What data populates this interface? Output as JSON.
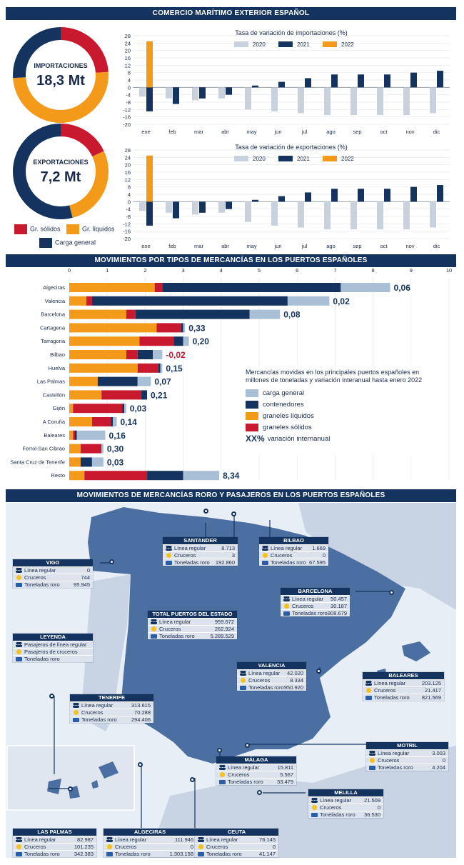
{
  "headers": {
    "top": "COMERCIO MARÍTIMO EXTERIOR ESPAÑOL",
    "middle": "MOVIMIENTOS POR TIPOS DE MERCANCÍAS EN LOS PUERTOS ESPAÑOLES",
    "bottom": "MOVIMIENTOS DE MERCANCÍAS RORO Y PASAJEROS EN LOS PUERTOS ESPAÑOLES"
  },
  "colors": {
    "navy": "#14345f",
    "orange": "#f39a1a",
    "red": "#c8192f",
    "light": "#a9bfd6",
    "grey": "#c9d2dc",
    "map_land": "#4a6fa0",
    "map_other": "#c8d4e4",
    "sea": "#ffffff"
  },
  "donuts": [
    {
      "label": "IMPORTACIONES",
      "value": "18,3 Mt",
      "segments": [
        {
          "name": "Gr. sólidos",
          "share": 0.24,
          "color": "#c8192f"
        },
        {
          "name": "Gr. líquidos",
          "share": 0.5,
          "color": "#f39a1a"
        },
        {
          "name": "Carga general",
          "share": 0.26,
          "color": "#14345f"
        }
      ]
    },
    {
      "label": "EXPORTACIONES",
      "value": "7,2 Mt",
      "segments": [
        {
          "name": "Gr. sólidos",
          "share": 0.18,
          "color": "#c8192f"
        },
        {
          "name": "Gr. líquidos",
          "share": 0.28,
          "color": "#f39a1a"
        },
        {
          "name": "Carga general",
          "share": 0.54,
          "color": "#14345f"
        }
      ]
    }
  ],
  "donut_legend": [
    "Gr. sólidos",
    "Gr. líquidos",
    "Carga general"
  ],
  "chart_data": [
    {
      "type": "bar",
      "title": "Tasa de variación de importaciones (%)",
      "categories": [
        "ene",
        "feb",
        "mar",
        "abr",
        "may",
        "jun",
        "jul",
        "ago",
        "sep",
        "oct",
        "nov",
        "dic"
      ],
      "ylim": [
        -20,
        28
      ],
      "yticks": [
        28,
        24,
        20,
        16,
        12,
        8,
        4,
        0,
        -4,
        -8,
        -12,
        -16,
        -20
      ],
      "series": [
        {
          "name": "2020",
          "color": "#c9d2dc",
          "values": [
            -5,
            -6,
            -7,
            -6,
            -12,
            -13,
            -14,
            -15,
            -15,
            -15,
            -15,
            -14
          ]
        },
        {
          "name": "2021",
          "color": "#14345f",
          "values": [
            -13,
            -9,
            -6,
            -4,
            1,
            3,
            5,
            7,
            7,
            7,
            8,
            9
          ]
        },
        {
          "name": "2022",
          "color": "#f39a1a",
          "values": [
            25,
            null,
            null,
            null,
            null,
            null,
            null,
            null,
            null,
            null,
            null,
            null
          ]
        }
      ]
    },
    {
      "type": "bar",
      "title": "Tasa de variación de exportaciones (%)",
      "categories": [
        "ene",
        "feb",
        "mar",
        "abr",
        "may",
        "jun",
        "jul",
        "ago",
        "sep",
        "oct",
        "nov",
        "dic"
      ],
      "ylim": [
        -20,
        28
      ],
      "yticks": [
        28,
        24,
        20,
        16,
        12,
        8,
        4,
        0,
        -4,
        -8,
        -12,
        -16,
        -20
      ],
      "series": [
        {
          "name": "2020",
          "color": "#c9d2dc",
          "values": [
            -5,
            -6,
            -7,
            -6,
            -11,
            -13,
            -14,
            -15,
            -15,
            -15,
            -15,
            -14
          ]
        },
        {
          "name": "2021",
          "color": "#14345f",
          "values": [
            -13,
            -9,
            -6,
            -4,
            1,
            3,
            5,
            7,
            7,
            7,
            8,
            9
          ]
        },
        {
          "name": "2022",
          "color": "#f39a1a",
          "values": [
            25,
            null,
            null,
            null,
            null,
            null,
            null,
            null,
            null,
            null,
            null,
            null
          ]
        }
      ]
    },
    {
      "type": "bar",
      "orientation": "horizontal-stacked",
      "xlim": [
        0,
        10
      ],
      "xticks": [
        0,
        1,
        2,
        3,
        4,
        5,
        6,
        7,
        8,
        9,
        10
      ],
      "categories": [
        "Algeciras",
        "Valencia",
        "Barcelona",
        "Cartagena",
        "Tarragona",
        "Bilbao",
        "Huelva",
        "Las Palmas",
        "Castellón",
        "Gijón",
        "A Coruña",
        "Baleares",
        "Ferrol-San Cibrao",
        "Santa Cruz de Tenerife",
        "Resto"
      ],
      "series": [
        {
          "name": "graneles líquidos",
          "color": "#f39a1a",
          "values": [
            2.25,
            0.45,
            1.5,
            2.3,
            1.85,
            1.5,
            1.8,
            0.75,
            0.85,
            0.1,
            0.6,
            0.1,
            0.3,
            0.3,
            0.4
          ]
        },
        {
          "name": "graneles sólidos",
          "color": "#c8192f",
          "values": [
            0.2,
            0.15,
            0.25,
            0.65,
            0.9,
            0.3,
            0.55,
            0.0,
            1.05,
            1.3,
            0.5,
            0.05,
            0.55,
            0.0,
            1.65
          ]
        },
        {
          "name": "contenedores",
          "color": "#14345f",
          "values": [
            4.7,
            5.15,
            3.0,
            0.05,
            0.25,
            0.4,
            0.05,
            1.05,
            0.15,
            0.05,
            0.05,
            0.05,
            0.0,
            0.3,
            0.95
          ]
        },
        {
          "name": "carga general",
          "color": "#a9bfd6",
          "values": [
            1.3,
            1.1,
            0.8,
            0.05,
            0.15,
            0.25,
            0.05,
            0.35,
            0.0,
            0.05,
            0.1,
            0.75,
            0.05,
            0.3,
            0.95
          ]
        }
      ],
      "labels": [
        "0,06",
        "0,02",
        "0,08",
        "0,33",
        "0,20",
        "-0,02",
        "0,15",
        "0,07",
        "0,21",
        "0,03",
        "0,14",
        "0,16",
        "0,30",
        "0,03",
        "8,34"
      ],
      "legend_title": "Mercancías movidas en los principales puertos españoles en millones de toneladas y variación interanual hasta enero 2022",
      "legend": [
        "carga general",
        "contenedores",
        "graneles líquidos",
        "graneles sólidos"
      ],
      "legend_xx": "XX%",
      "legend_xx_label": "variación internanual"
    }
  ],
  "map": {
    "row_labels": {
      "pax": "Línea regular",
      "cru": "Cruceros",
      "roro": "Toneladas roro"
    },
    "legend": {
      "title": "LEYENDA",
      "items": [
        "Pasajeros de línea regular",
        "Pasajeros de cruceros",
        "Toneladas roro"
      ]
    },
    "cards": [
      {
        "id": "santander",
        "name": "SANTANDER",
        "pax": "8.713",
        "cru": "3",
        "roro": "192.860"
      },
      {
        "id": "bilbao",
        "name": "BILBAO",
        "pax": "1.669",
        "cru": "0",
        "roro": "67.595"
      },
      {
        "id": "vigo",
        "name": "VIGO",
        "pax": "0",
        "cru": "744",
        "roro": "95.945"
      },
      {
        "id": "barcelona",
        "name": "BARCELONA",
        "pax": "50.457",
        "cru": "30.187",
        "roro": "808.679"
      },
      {
        "id": "total",
        "name": "TOTAL PUERTOS DEL ESTADO",
        "pax": "959.672",
        "cru": "262.924",
        "roro": "5.289.529"
      },
      {
        "id": "valencia",
        "name": "VALENCIA",
        "pax": "42.020",
        "cru": "8.334",
        "roro": "950.920"
      },
      {
        "id": "baleares",
        "name": "BALEARES",
        "pax": "203.125",
        "cru": "21.417",
        "roro": "821.569"
      },
      {
        "id": "tenerife",
        "name": "TENERIFE",
        "pax": "313.615",
        "cru": "70.288",
        "roro": "294.406"
      },
      {
        "id": "motril",
        "name": "MOTRIL",
        "pax": "3.003",
        "cru": "0",
        "roro": "4.204"
      },
      {
        "id": "malaga",
        "name": "MÁLAGA",
        "pax": "15.811",
        "cru": "5.567",
        "roro": "33.479"
      },
      {
        "id": "melilla",
        "name": "MELILLA",
        "pax": "21.509",
        "cru": "0",
        "roro": "36.530"
      },
      {
        "id": "laspalmas",
        "name": "LAS PALMAS",
        "pax": "82.987",
        "cru": "101.235",
        "roro": "342.383"
      },
      {
        "id": "algeciras",
        "name": "ALGECIRAS",
        "pax": "111.946",
        "cru": "0",
        "roro": "1.303.158"
      },
      {
        "id": "ceuta",
        "name": "CEUTA",
        "pax": "76.145",
        "cru": "0",
        "roro": "41.147"
      }
    ]
  }
}
